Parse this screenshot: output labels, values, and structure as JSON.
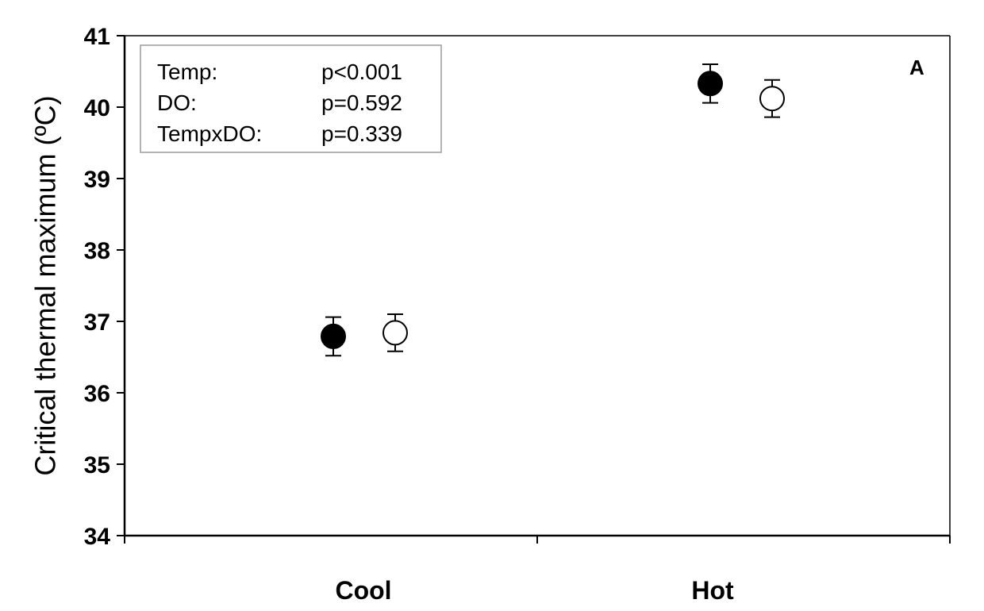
{
  "chart_data": {
    "type": "scatter",
    "title": "",
    "xlabel": "",
    "ylabel": "Critical thermal maximum (ºC)",
    "ylim": [
      34,
      41
    ],
    "yticks": [
      34,
      35,
      36,
      37,
      38,
      39,
      40,
      41
    ],
    "categories": [
      "Cool",
      "Hot"
    ],
    "grid": false,
    "panel_label": "A",
    "series": [
      {
        "marker": "filled-circle",
        "color": "#000000",
        "values": [
          36.79,
          40.33
        ],
        "error": [
          0.27,
          0.27
        ]
      },
      {
        "marker": "open-circle",
        "color": "#ffffff",
        "values": [
          36.84,
          40.12
        ],
        "error": [
          0.26,
          0.26
        ]
      }
    ],
    "stats_box": {
      "placement": "top-left",
      "rows": [
        {
          "term": "Temp:",
          "p": "p<0.001"
        },
        {
          "term": "DO:",
          "p": "p=0.592"
        },
        {
          "term": "TempxDO:",
          "p": "p=0.339"
        }
      ]
    }
  }
}
